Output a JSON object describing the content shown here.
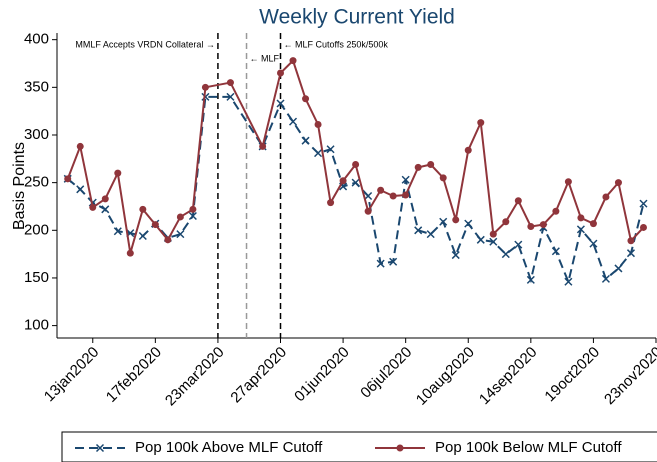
{
  "chart_data": {
    "type": "line",
    "title": "Weekly Current Yield",
    "y_label": "Basis Points",
    "x": [
      "30dec2019",
      "06jan2020",
      "13jan2020",
      "20jan2020",
      "27jan2020",
      "03feb2020",
      "10feb2020",
      "17feb2020",
      "24feb2020",
      "02mar2020",
      "09mar2020",
      "16mar2020",
      "30mar2020",
      "17apr2020",
      "27apr2020",
      "04may2020",
      "11may2020",
      "18may2020",
      "25may2020",
      "01jun2020",
      "08jun2020",
      "15jun2020",
      "22jun2020",
      "29jun2020",
      "06jul2020",
      "13jul2020",
      "20jul2020",
      "27jul2020",
      "03aug2020",
      "10aug2020",
      "17aug2020",
      "24aug2020",
      "31aug2020",
      "07sep2020",
      "14sep2020",
      "21sep2020",
      "28sep2020",
      "05oct2020",
      "12oct2020",
      "19oct2020",
      "26oct2020",
      "02nov2020",
      "09nov2020",
      "16nov2020"
    ],
    "series": [
      {
        "name": "Pop 100k Above MLF Cutoff",
        "color": "#1a476f",
        "linestyle": "dashed",
        "marker": "x",
        "values": [
          254,
          243,
          229,
          222,
          199,
          197,
          194,
          207,
          192,
          196,
          215,
          340,
          340,
          288,
          333,
          314,
          294,
          281,
          285,
          246,
          250,
          236,
          165,
          167,
          253,
          200,
          196,
          209,
          174,
          207,
          190,
          188,
          175,
          185,
          148,
          203,
          178,
          146,
          201,
          186,
          149,
          160,
          176,
          228
        ]
      },
      {
        "name": "Pop 100k Below MLF Cutoff",
        "color": "#90353b",
        "linestyle": "solid",
        "marker": "circle",
        "values": [
          254,
          288,
          224,
          233,
          260,
          176,
          222,
          206,
          190,
          214,
          222,
          350,
          355,
          288,
          365,
          378,
          338,
          311,
          229,
          252,
          269,
          220,
          242,
          236,
          237,
          266,
          269,
          255,
          211,
          284,
          313,
          196,
          209,
          231,
          204,
          206,
          220,
          251,
          213,
          207,
          235,
          250,
          189,
          203
        ]
      }
    ],
    "xlim": [
      "24dec2019",
      "23nov2020"
    ],
    "xticks": [
      "13jan2020",
      "17feb2020",
      "23mar2020",
      "27apr2020",
      "01jun2020",
      "06jul2020",
      "10aug2020",
      "14sep2020",
      "19oct2020",
      "23nov2020"
    ],
    "ylim": [
      87,
      407
    ],
    "yticks": [
      100,
      150,
      200,
      250,
      300,
      350,
      400
    ],
    "grid": false,
    "annotations": [
      {
        "x": "23mar2020",
        "label": "MMLF Accepts VRDN Collateral →",
        "color": "#000000"
      },
      {
        "x": "08apr2020",
        "label": "← MLF",
        "color": "#999999"
      },
      {
        "x": "27apr2020",
        "label": "← MLF Cutoffs 250k/500k",
        "color": "#000000"
      }
    ],
    "legend": "bottom"
  }
}
